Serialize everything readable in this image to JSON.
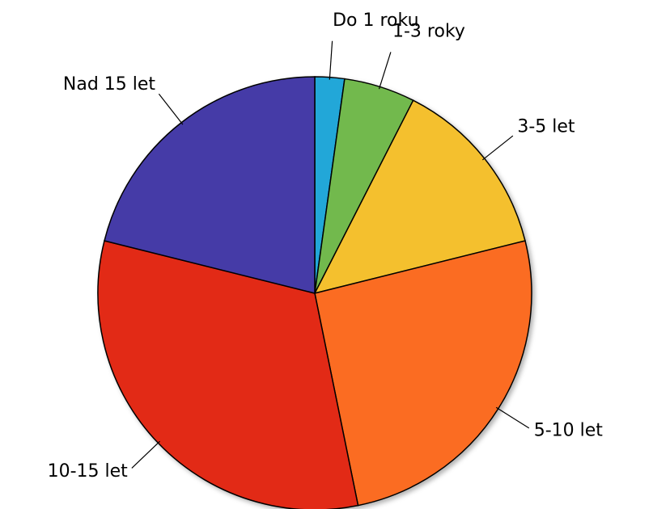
{
  "chart_data": {
    "type": "pie",
    "categories": [
      "Do 1 roku",
      "1-3 roky",
      "3-5 let",
      "5-10 let",
      "10-15 let",
      "Nad 15 let"
    ],
    "values": [
      2.2,
      5.3,
      13.6,
      25.7,
      32.1,
      21.1
    ],
    "colors": [
      "#22a7d8",
      "#72b94e",
      "#f4c02f",
      "#fb6c20",
      "#e22a18",
      "#453aa7"
    ]
  }
}
